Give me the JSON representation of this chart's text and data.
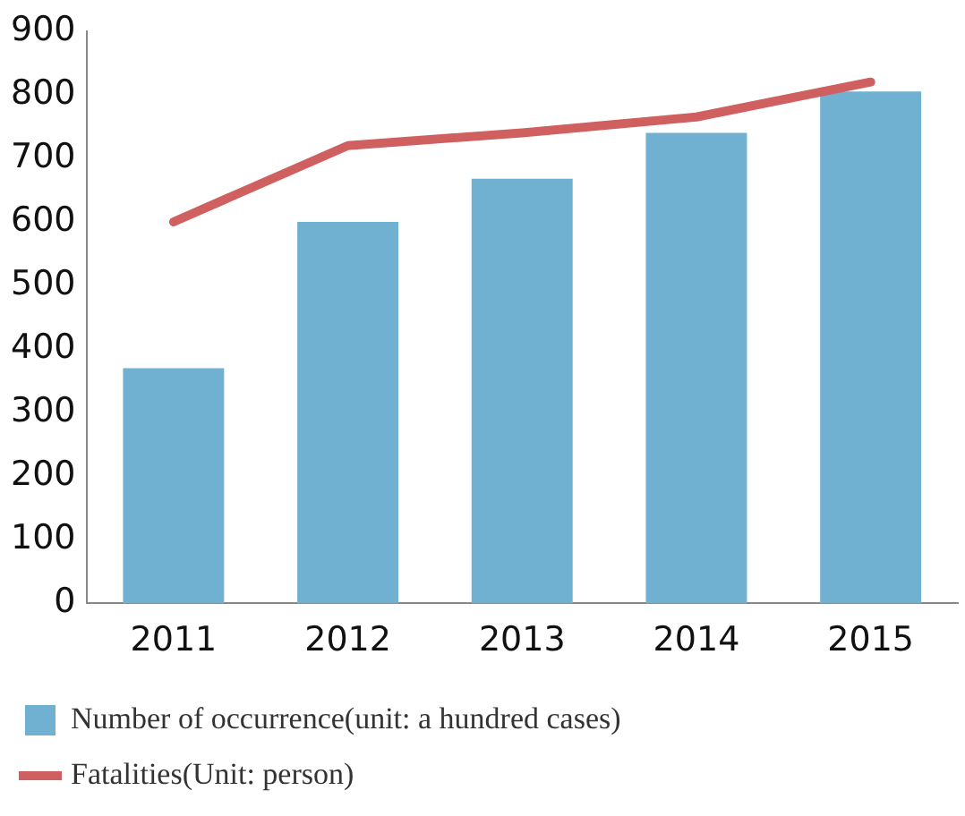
{
  "chart_data": {
    "type": "bar",
    "categories": [
      "2011",
      "2012",
      "2013",
      "2014",
      "2015"
    ],
    "series": [
      {
        "name": "Number of occurrence(unit: a hundred cases)",
        "color": "#70b0d0",
        "values": [
          370,
          600,
          668,
          740,
          805
        ]
      },
      {
        "name": "Fatalities(Unit: person)",
        "type": "line",
        "color": "#d06060",
        "values": [
          600,
          720,
          740,
          765,
          820
        ]
      }
    ],
    "ylim": [
      0,
      900
    ],
    "yticks": [
      0,
      100,
      200,
      300,
      400,
      500,
      600,
      700,
      800,
      900
    ],
    "grid": false,
    "legend": "bottom",
    "marker": "none"
  }
}
